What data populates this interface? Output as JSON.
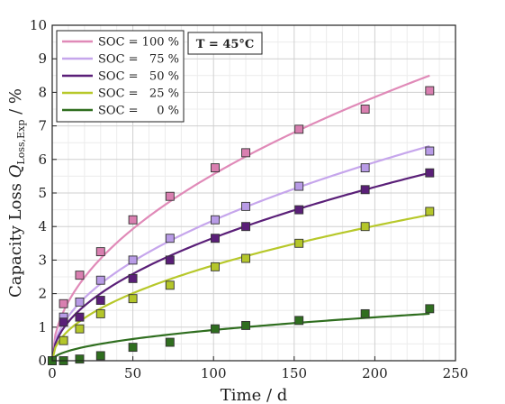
{
  "chart_data": {
    "type": "scatter",
    "xlabel": "Time / d",
    "ylabel_main": "Capacity Loss ",
    "ylabel_symbol": "Q",
    "ylabel_subscript": "Loss,Exp",
    "ylabel_unit": " / %",
    "annotation": "T = 45°C",
    "xlim": [
      0,
      250
    ],
    "ylim": [
      0,
      10
    ],
    "xticks": [
      0,
      50,
      100,
      150,
      200,
      250
    ],
    "yticks": [
      0,
      1,
      2,
      3,
      4,
      5,
      6,
      7,
      8,
      9,
      10
    ],
    "grid": true,
    "legend_position": "top-left",
    "x": [
      0,
      7,
      17,
      30,
      50,
      73,
      101,
      120,
      153,
      194,
      234
    ],
    "series": [
      {
        "name": "SOC = 100 %",
        "color": "#e08ab8",
        "marker_fill": "#d97fb0",
        "values": [
          0,
          1.7,
          2.55,
          3.25,
          4.2,
          4.9,
          5.75,
          6.2,
          6.9,
          7.5,
          8.05
        ],
        "fit_end": 8.5
      },
      {
        "name": "SOC =   75 %",
        "color": "#c6a6ec",
        "marker_fill": "#b89be6",
        "values": [
          0,
          1.3,
          1.75,
          2.4,
          3.0,
          3.65,
          4.2,
          4.6,
          5.2,
          5.75,
          6.25
        ],
        "fit_end": 6.4
      },
      {
        "name": "SOC =   50 %",
        "color": "#5a1f78",
        "marker_fill": "#5a1f78",
        "values": [
          0,
          1.15,
          1.3,
          1.8,
          2.45,
          3.0,
          3.65,
          4.0,
          4.5,
          5.1,
          5.6
        ],
        "fit_end": 5.6
      },
      {
        "name": "SOC =   25 %",
        "color": "#b7c82a",
        "marker_fill": "#b4c62a",
        "values": [
          0,
          0.6,
          0.95,
          1.4,
          1.85,
          2.25,
          2.8,
          3.05,
          3.5,
          4.0,
          4.45
        ],
        "fit_end": 4.35
      },
      {
        "name": "SOC =     0 %",
        "color": "#2f6e1f",
        "marker_fill": "#2f6e1f",
        "values": [
          0,
          0.0,
          0.05,
          0.15,
          0.4,
          0.55,
          0.95,
          1.05,
          1.2,
          1.4,
          1.55
        ],
        "fit_end": 1.4
      }
    ]
  }
}
